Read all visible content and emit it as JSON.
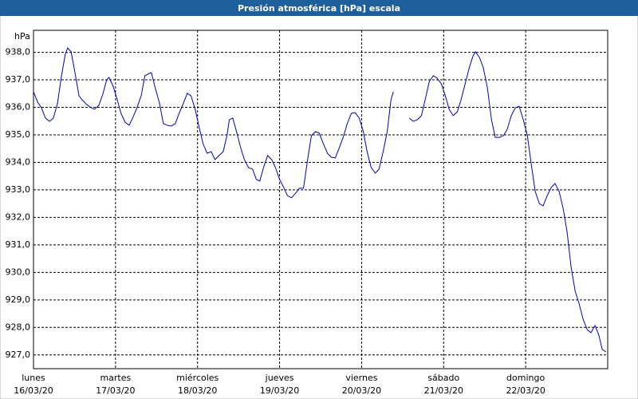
{
  "chart_data": {
    "type": "line",
    "title": "Presión atmosférica [hPa] escala",
    "y_unit": "hPa",
    "xlim": [
      0,
      168
    ],
    "xticks": [
      {
        "value": 0,
        "label": "lunes"
      },
      {
        "value": 24,
        "label": "martes"
      },
      {
        "value": 48,
        "label": "miércoles"
      },
      {
        "value": 72,
        "label": "jueves"
      },
      {
        "value": 96,
        "label": "viernes"
      },
      {
        "value": 120,
        "label": "sábado"
      },
      {
        "value": 144,
        "label": "domingo"
      }
    ],
    "xtick_dates": [
      "16/03/20",
      "17/03/20",
      "18/03/20",
      "19/03/20",
      "20/03/20",
      "21/03/20",
      "22/03/20"
    ],
    "ylim": [
      926.5,
      938.8
    ],
    "yticks": [
      {
        "value": 927,
        "label": "927,0"
      },
      {
        "value": 928,
        "label": "928,0"
      },
      {
        "value": 929,
        "label": "929,0"
      },
      {
        "value": 930,
        "label": "930,0"
      },
      {
        "value": 931,
        "label": "931,0"
      },
      {
        "value": 932,
        "label": "932,0"
      },
      {
        "value": 933,
        "label": "933,0"
      },
      {
        "value": 934,
        "label": "934,0"
      },
      {
        "value": 935,
        "label": "935,0"
      },
      {
        "value": 936,
        "label": "936,0"
      },
      {
        "value": 937,
        "label": "937,0"
      },
      {
        "value": 938,
        "label": "938,0"
      }
    ],
    "grid": true,
    "x": [
      0,
      1.2,
      2.3,
      3.5,
      4.7,
      5.8,
      7.0,
      8.2,
      9.3,
      10.0,
      11.0,
      12.1,
      13.3,
      14.4,
      15.6,
      16.8,
      17.9,
      19.1,
      20.3,
      21.4,
      22.1,
      23.3,
      24.5,
      25.6,
      26.8,
      28.0,
      29.1,
      30.3,
      31.5,
      32.6,
      33.8,
      34.5,
      35.6,
      36.8,
      38.0,
      39.1,
      40.3,
      41.5,
      42.6,
      43.8,
      45.0,
      46.1,
      47.3,
      48.5,
      49.6,
      50.8,
      52.0,
      53.1,
      54.3,
      55.5,
      56.6,
      57.3,
      58.3,
      59.4,
      60.6,
      61.7,
      62.9,
      64.1,
      65.2,
      66.2,
      67.3,
      68.5,
      69.7,
      70.8,
      72.0,
      73.2,
      74.3,
      75.5,
      76.7,
      77.8,
      79.0,
      80.2,
      81.3,
      82.5,
      83.6,
      84.8,
      86.0,
      87.1,
      88.3,
      89.5,
      90.6,
      91.8,
      93.0,
      94.1,
      95.3,
      96.5,
      97.6,
      98.8,
      100.0,
      101.1,
      102.3,
      103.5,
      104.6,
      105.3,
      107.6,
      110.0,
      111.1,
      112.3,
      113.5,
      114.6,
      115.8,
      117.0,
      118.1,
      119.3,
      120.5,
      121.6,
      122.8,
      124.0,
      125.1,
      126.3,
      127.5,
      128.6,
      129.3,
      130.5,
      131.6,
      132.8,
      134.0,
      135.1,
      136.3,
      137.5,
      138.6,
      139.8,
      141.0,
      142.1,
      143.3,
      144.5,
      145.6,
      146.8,
      148.0,
      149.1,
      150.3,
      151.5,
      152.6,
      153.8,
      155.0,
      156.1,
      157.3,
      158.5,
      159.6,
      160.8,
      162.0,
      163.1,
      164.3,
      165.4,
      166.4,
      167.5
    ],
    "series": [
      {
        "color": "#0000c0",
        "values": [
          936.57,
          936.19,
          935.99,
          935.61,
          935.49,
          935.61,
          936.13,
          937.15,
          937.93,
          938.16,
          938.02,
          937.29,
          936.42,
          936.25,
          936.1,
          935.99,
          935.93,
          936.07,
          936.48,
          937.0,
          937.09,
          936.77,
          936.28,
          935.78,
          935.46,
          935.35,
          935.64,
          935.99,
          936.42,
          937.15,
          937.23,
          937.26,
          936.71,
          936.19,
          935.41,
          935.35,
          935.32,
          935.41,
          935.78,
          936.13,
          936.51,
          936.42,
          935.93,
          935.26,
          934.68,
          934.33,
          934.39,
          934.1,
          934.25,
          934.39,
          934.97,
          935.55,
          935.61,
          935.12,
          934.54,
          934.1,
          933.81,
          933.75,
          933.38,
          933.32,
          933.81,
          934.25,
          934.1,
          933.81,
          933.38,
          933.09,
          932.79,
          932.71,
          932.88,
          933.06,
          933.06,
          934.1,
          934.97,
          935.12,
          935.06,
          934.68,
          934.33,
          934.19,
          934.16,
          934.54,
          934.91,
          935.41,
          935.78,
          935.81,
          935.61,
          935.12,
          934.39,
          933.81,
          933.61,
          933.75,
          934.39,
          935.12,
          936.28,
          936.57,
          null,
          935.61,
          935.49,
          935.55,
          935.7,
          936.28,
          936.94,
          937.15,
          937.06,
          936.86,
          936.42,
          935.93,
          935.7,
          935.84,
          936.28,
          936.86,
          937.44,
          937.87,
          938.02,
          937.81,
          937.44,
          936.71,
          935.55,
          934.91,
          934.91,
          934.97,
          935.2,
          935.7,
          935.99,
          936.04,
          935.55,
          934.97,
          933.96,
          932.94,
          932.5,
          932.42,
          932.79,
          933.09,
          933.23,
          932.94,
          932.3,
          931.49,
          930.18,
          929.31,
          928.88,
          928.3,
          927.92,
          927.81,
          928.07,
          927.72,
          927.2,
          927.11
        ]
      }
    ]
  }
}
